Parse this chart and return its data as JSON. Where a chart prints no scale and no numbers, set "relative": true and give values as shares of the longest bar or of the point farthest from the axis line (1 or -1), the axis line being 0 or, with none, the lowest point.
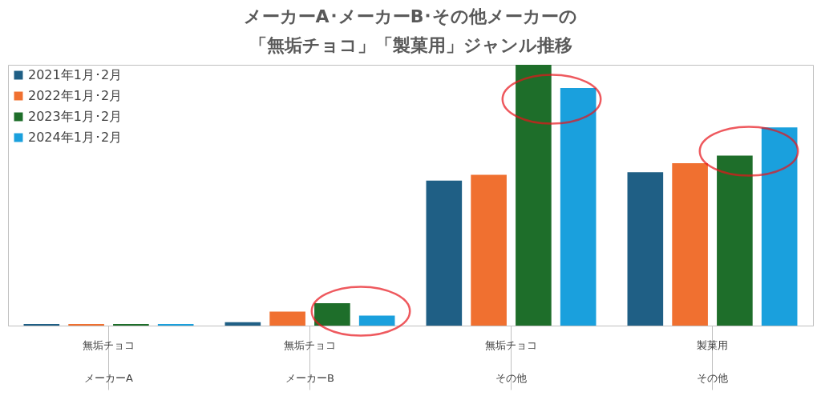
{
  "chart_data": {
    "type": "bar",
    "title": "メーカーA･メーカーB･その他メーカーの",
    "subtitle": "「無垢チョコ」「製菓用」ジャンル推移",
    "relative": true,
    "legend": "top left",
    "grid": false,
    "categories": [
      "無垢チョコ",
      "無垢チョコ",
      "無垢チョコ",
      "製菓用"
    ],
    "annotations": [
      "メーカーA",
      "メーカーB",
      "その他",
      "その他"
    ],
    "series": [
      {
        "name": "2021年1月･2月",
        "color": "#1f5f85",
        "values": [
          0.006,
          0.013,
          0.556,
          0.588
        ]
      },
      {
        "name": "2022年1月･2月",
        "color": "#f07030",
        "values": [
          0.006,
          0.054,
          0.578,
          0.623
        ]
      },
      {
        "name": "2023年1月･2月",
        "color": "#1e6e2a",
        "values": [
          0.006,
          0.086,
          1.0,
          0.652
        ]
      },
      {
        "name": "2024年1月･2月",
        "color": "#1aa0dd",
        "values": [
          0.006,
          0.038,
          0.911,
          0.76
        ]
      }
    ]
  }
}
